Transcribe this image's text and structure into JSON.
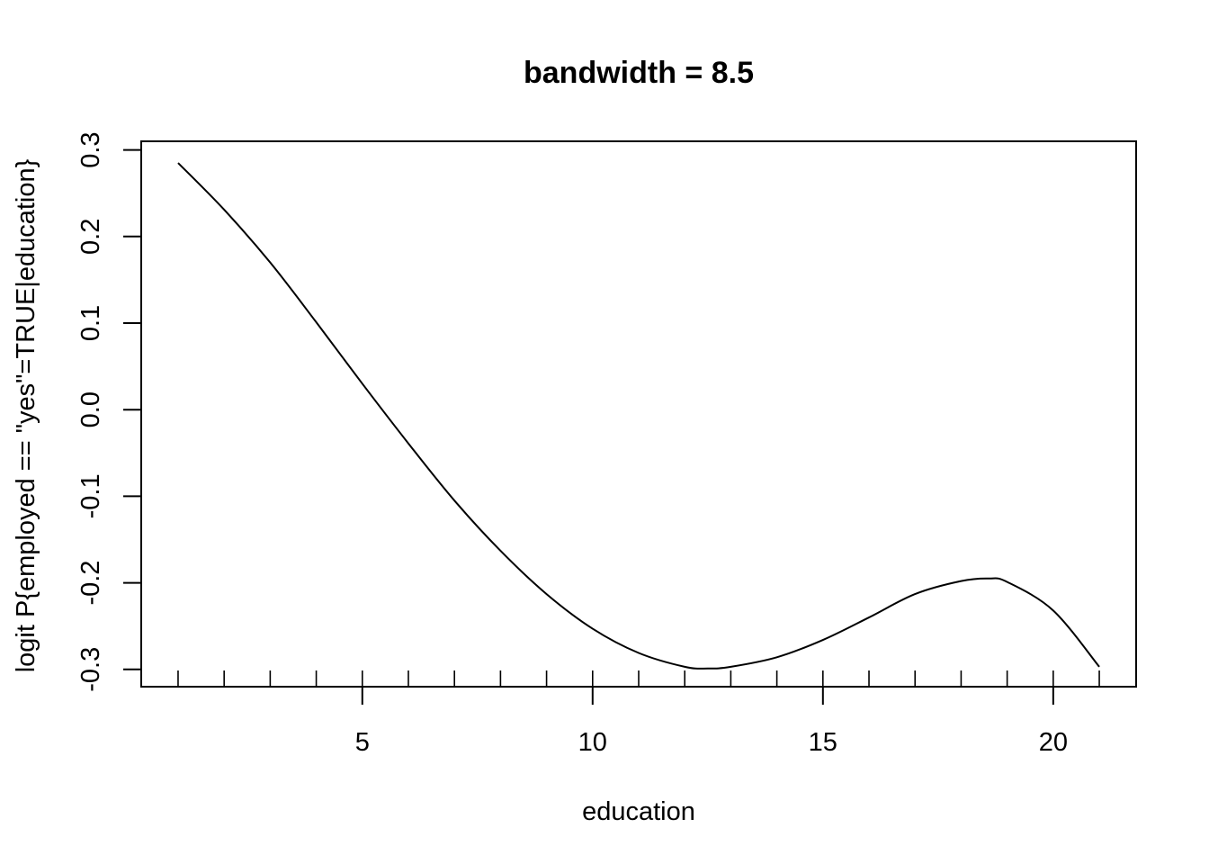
{
  "chart_data": {
    "type": "line",
    "title": "bandwidth = 8.5",
    "xlabel": "education",
    "ylabel": "logit P{employed == \"yes\"=TRUE|education}",
    "xlim": [
      0.2,
      21.8
    ],
    "ylim": [
      -0.32,
      0.31
    ],
    "x_ticks": [
      5,
      10,
      15,
      20
    ],
    "x_tick_labels": [
      "5",
      "10",
      "15",
      "20"
    ],
    "y_ticks": [
      -0.3,
      -0.2,
      -0.1,
      0.0,
      0.1,
      0.2,
      0.3
    ],
    "y_tick_labels": [
      "-0.3",
      "-0.2",
      "-0.1",
      "0.0",
      "0.1",
      "0.2",
      "0.3"
    ],
    "rug_x": [
      1,
      2,
      3,
      4,
      5,
      6,
      7,
      8,
      9,
      10,
      11,
      12,
      13,
      14,
      15,
      16,
      17,
      18,
      19,
      20,
      21
    ],
    "grid": false,
    "legend": "none",
    "color": "#000000",
    "x": [
      1,
      2,
      3,
      4,
      5,
      6,
      7,
      8,
      9,
      10,
      11,
      12,
      12.5,
      13,
      14,
      15,
      16,
      17,
      18,
      18.6,
      19,
      20,
      21
    ],
    "y": [
      0.285,
      0.231,
      0.17,
      0.101,
      0.03,
      -0.039,
      -0.105,
      -0.163,
      -0.213,
      -0.253,
      -0.281,
      -0.297,
      -0.299,
      -0.297,
      -0.286,
      -0.266,
      -0.24,
      -0.213,
      -0.198,
      -0.195,
      -0.199,
      -0.232,
      -0.297
    ]
  }
}
